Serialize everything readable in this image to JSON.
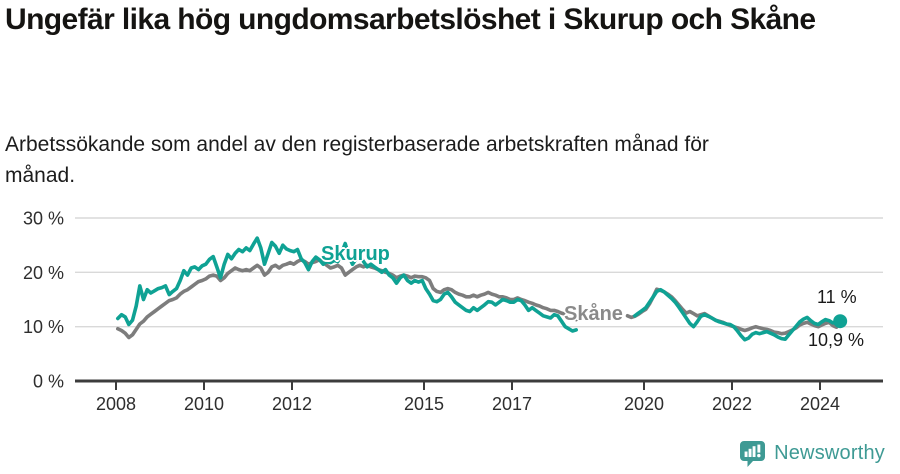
{
  "header": {
    "title": "Ungefär lika hög ungdomsarbetslöshet i Skurup och Skåne",
    "subtitle": "Arbetssökande som andel av den registerbaserade arbetskraften månad för månad."
  },
  "branding": {
    "name": "Newsworthy",
    "logo_color": "#3e9a94"
  },
  "chart_data": {
    "type": "line",
    "unit": "%",
    "grid": "horizontal",
    "y_axis": {
      "range": [
        0,
        32
      ],
      "ticks": [
        {
          "value": 30,
          "label": "30 %"
        },
        {
          "value": 20,
          "label": "20 %"
        },
        {
          "value": 10,
          "label": "10 %"
        },
        {
          "value": 0,
          "label": "0 %"
        }
      ]
    },
    "x_axis": {
      "range_years": [
        2007.1,
        2025.4
      ],
      "ticks": [
        "2008",
        "2010",
        "2012",
        "2015",
        "2017",
        "2020",
        "2022",
        "2024"
      ],
      "tick_years": [
        2008,
        2010,
        2012,
        2015,
        2017,
        2020,
        2022,
        2024
      ]
    },
    "colors": {
      "skurup": "#0fa294",
      "skane": "#7d7d7d",
      "axis": "#3c3c3c",
      "grid": "#d9d9d9",
      "text": "#2e2e2e"
    },
    "series": [
      {
        "name": "Skurup",
        "color": "#0fa294",
        "end_label": "11 %",
        "end_marker": true,
        "segments": [
          {
            "start_year": 2008,
            "start_month": 1,
            "values": [
              11.5,
              12.2,
              11.8,
              10.4,
              11.2,
              13.8,
              17.5,
              15.0,
              16.8,
              16.2,
              16.6,
              17.0,
              17.2,
              17.5,
              15.9,
              16.5,
              17.0,
              18.5,
              20.3,
              19.5,
              20.8,
              21.0,
              20.5,
              21.2,
              21.5,
              22.4,
              22.9,
              21.0,
              19.0,
              21.5,
              23.3,
              22.5,
              23.5,
              24.2,
              23.8,
              24.5,
              24.0,
              25.2,
              26.3,
              24.5,
              21.5,
              23.5,
              25.5,
              24.8,
              23.5,
              25.0,
              24.3,
              24.0,
              23.8,
              24.2,
              22.5,
              21.8,
              20.5,
              22.0,
              22.8,
              22.3,
              21.5,
              22.0,
              21.8,
              22.2,
              22.0,
              23.5,
              25.3,
              23.0,
              21.5,
              22.5,
              23.0,
              22.0,
              21.0,
              21.5,
              21.0,
              20.5,
              20.0,
              20.5,
              19.5,
              19.0,
              18.0,
              19.0,
              19.5,
              18.5,
              18.0,
              18.5,
              18.2,
              18.5,
              17.0,
              16.0,
              14.8,
              14.6,
              15.0,
              16.0,
              16.3,
              15.5,
              14.5,
              14.0,
              13.5,
              13.0,
              12.8,
              13.5,
              13.0,
              13.5,
              14.0,
              14.6,
              14.5,
              14.0,
              14.5,
              15.0,
              14.8,
              14.5,
              14.5,
              15.0,
              14.8,
              14.0,
              13.0,
              13.5,
              13.0,
              12.5,
              12.0,
              11.8,
              11.6,
              12.2,
              12.0,
              11.0,
              10.0,
              9.6,
              9.2,
              9.4
            ]
          },
          {
            "start_year": 2019,
            "start_month": 10,
            "values": [
              12.0,
              12.5,
              13.0,
              13.5,
              14.5,
              15.5,
              16.5,
              16.8,
              16.4,
              15.8,
              15.2,
              14.5,
              13.6,
              12.6,
              11.6,
              10.6,
              10.0,
              10.9,
              11.9,
              12.2,
              11.9,
              11.6,
              11.2,
              10.9,
              10.7,
              10.5,
              10.4,
              10.0,
              9.2,
              8.3,
              7.6,
              7.9,
              8.6,
              8.9,
              8.7,
              8.9,
              9.1,
              8.8,
              8.5,
              8.1,
              7.8,
              7.7,
              8.5,
              9.3,
              10.1,
              10.9,
              11.4,
              11.7,
              11.1,
              10.6,
              10.4,
              10.9,
              11.3,
              11.1,
              10.7,
              10.8,
              11.0
            ]
          }
        ]
      },
      {
        "name": "Skåne",
        "color": "#7d7d7d",
        "end_label": "10,9 %",
        "end_marker": false,
        "segments": [
          {
            "start_year": 2008,
            "start_month": 1,
            "values": [
              9.6,
              9.3,
              8.8,
              8.0,
              8.5,
              9.5,
              10.5,
              11.0,
              11.8,
              12.3,
              12.8,
              13.3,
              13.8,
              14.3,
              14.8,
              15.0,
              15.3,
              16.0,
              16.5,
              16.8,
              17.3,
              17.8,
              18.3,
              18.5,
              18.8,
              19.3,
              19.5,
              19.3,
              18.5,
              19.0,
              19.8,
              20.3,
              20.8,
              20.5,
              20.3,
              20.5,
              20.3,
              20.8,
              21.3,
              20.8,
              19.5,
              20.0,
              21.0,
              21.3,
              20.8,
              21.3,
              21.5,
              21.8,
              21.5,
              22.0,
              22.3,
              22.0,
              21.5,
              21.8,
              22.0,
              22.3,
              21.8,
              21.3,
              20.8,
              21.0,
              21.3,
              20.8,
              19.5,
              20.0,
              20.5,
              21.0,
              21.3,
              21.0,
              21.3,
              21.0,
              20.8,
              20.5,
              20.3,
              20.0,
              19.8,
              19.5,
              19.0,
              19.3,
              19.5,
              19.3,
              19.0,
              19.3,
              19.2,
              19.2,
              19.0,
              18.5,
              17.0,
              16.5,
              16.3,
              16.8,
              17.0,
              16.8,
              16.3,
              16.0,
              15.8,
              15.5,
              15.5,
              15.8,
              15.5,
              15.8,
              16.0,
              16.3,
              16.0,
              15.8,
              15.5,
              15.5,
              15.3,
              15.0,
              15.0,
              15.3,
              15.0,
              14.8,
              14.5,
              14.3,
              14.0,
              13.8,
              13.5,
              13.3,
              13.0,
              13.0,
              12.8,
              12.5,
              12.3,
              12.0,
              11.8,
              11.3
            ]
          },
          {
            "start_year": 2019,
            "start_month": 8,
            "values": [
              12.0,
              11.7,
              11.9,
              12.3,
              12.8,
              13.2,
              14.2,
              15.5,
              16.9,
              16.7,
              16.4,
              16.0,
              15.5,
              14.8,
              14.0,
              13.2,
              12.5,
              12.8,
              12.4,
              12.0,
              12.2,
              12.4,
              12.0,
              11.6,
              11.2,
              11.0,
              10.8,
              10.5,
              10.2,
              10.0,
              9.8,
              9.5,
              9.3,
              9.5,
              9.8,
              10.0,
              9.8,
              9.6,
              9.5,
              9.3,
              9.0,
              8.9,
              8.7,
              8.8,
              9.1,
              9.4,
              9.8,
              10.3,
              10.6,
              10.8,
              10.5,
              10.2,
              10.0,
              10.3,
              10.6,
              10.8,
              10.2,
              9.9,
              10.9
            ]
          }
        ]
      }
    ]
  }
}
